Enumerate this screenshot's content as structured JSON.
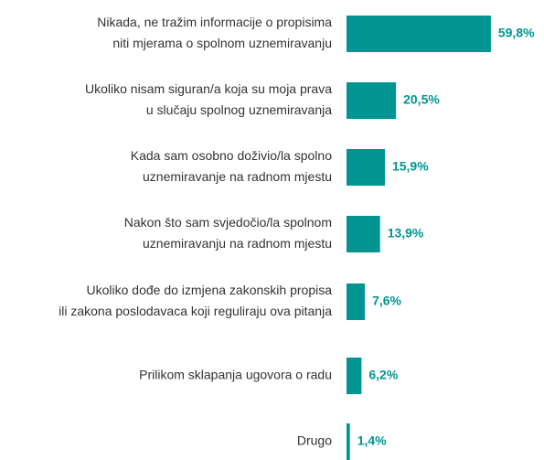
{
  "chart_data": {
    "type": "bar",
    "orientation": "horizontal",
    "categories": [
      [
        "Nikada, ne tražim informacije o propisima",
        "niti mjerama o spolnom uznemiravanju"
      ],
      [
        "Ukoliko nisam siguran/a koja su moja prava",
        "u slučaju spolnog uznemiravanja"
      ],
      [
        "Kada sam osobno doživio/la spolno",
        "uznemiravanje na radnom mjestu"
      ],
      [
        "Nakon što sam svjedočio/la spolnom",
        "uznemiravanju na radnom mjestu"
      ],
      [
        "Ukoliko dođe do izmjena zakonskih propisa",
        "ili zakona poslodavaca koji reguliraju ova pitanja"
      ],
      [
        "Prilikom sklapanja ugovora o radu"
      ],
      [
        "Drugo"
      ]
    ],
    "values": [
      59.8,
      20.5,
      15.9,
      13.9,
      7.6,
      6.2,
      1.4
    ],
    "value_labels": [
      "59,8%",
      "20,5%",
      "15,9%",
      "13,9%",
      "7,6%",
      "6,2%",
      "1,4%"
    ],
    "color": "#009591"
  }
}
